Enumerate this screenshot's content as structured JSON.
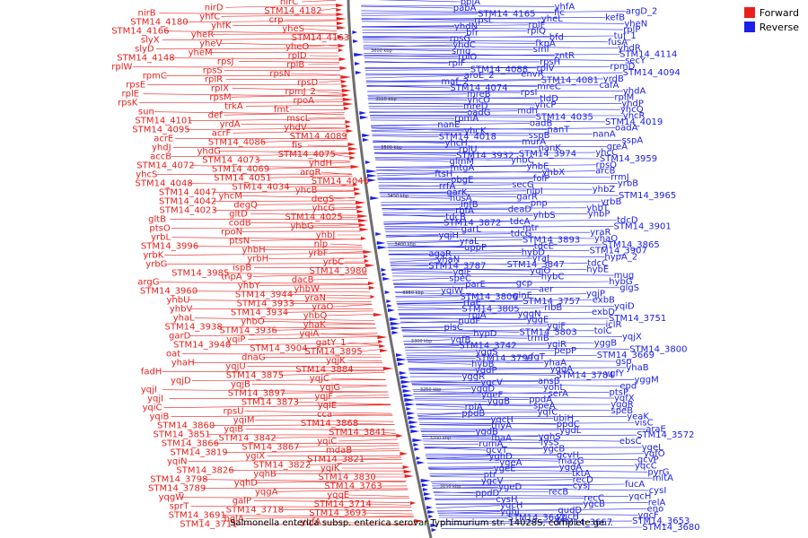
{
  "caption": "Salmonella enterica subsp. enterica serovar Typhimurium str. 14028S, complete ge...",
  "legend": [
    {
      "label": "Forward",
      "color": "#e8201c"
    },
    {
      "label": "Reverse",
      "color": "#1c20e8"
    }
  ],
  "colors": {
    "forward": "#e8201c",
    "reverse": "#1c20e8",
    "backbone": "#6e6e6e"
  },
  "scale_marks": [
    "3600 kbp",
    "3550 kbp",
    "3500 kbp",
    "3450 kbp",
    "3400 kbp",
    "3350 kbp",
    "3300 kbp",
    "3250 kbp",
    "3200 kbp",
    "3150 kbp"
  ],
  "forward_labels": [
    "nirC",
    "nirD",
    "nirB",
    "STM14_4182",
    "yhfC",
    "STM14_4180",
    "crp",
    "yhfK",
    "STM14_4166",
    "yheS",
    "yheR",
    "slyX",
    "STM14_4163",
    "yheV",
    "slyD",
    "yheO",
    "yheM",
    "STM14_4148",
    "rplD",
    "rpsJ",
    "rplW",
    "rplB",
    "rpsS",
    "rpmC",
    "rpsN",
    "rplR",
    "rpsE",
    "rpsD",
    "rplX",
    "rplE",
    "rpmJ_2",
    "rpsM",
    "rpsK",
    "rpoA",
    "trkA",
    "sun",
    "fmt",
    "def",
    "STM14_4101",
    "mscL",
    "yrdA",
    "STM14_4095",
    "yhdV",
    "acrF",
    "acrE",
    "STM14_4089",
    "STM14_4086",
    "yhdJ",
    "fis",
    "yhdG",
    "accB",
    "STM14_4075",
    "STM14_4073",
    "STM14_4072",
    "yhdH",
    "STM14_4069",
    "yhcS",
    "argR",
    "STM14_4051",
    "STM14_4048",
    "STM14_4046",
    "STM14_4034",
    "STM14_4047",
    "yhcB",
    "yhcM",
    "STM14_4042",
    "degS",
    "degQ",
    "STM14_4023",
    "yhcG",
    "gltD",
    "gltB",
    "STM14_4025",
    "codB",
    "ptsO",
    "yhbG",
    "rpoN",
    "yrbL",
    "yhbJ",
    "ptsN",
    "STM14_3996",
    "nlp",
    "yhbH",
    "yrbK",
    "yrbF",
    "yrbH",
    "yrbG",
    "yrbC",
    "ispB",
    "STM14_3985",
    "STM14_3980",
    "tnpA_9",
    "argG",
    "dacB",
    "yhbY",
    "STM14_3960",
    "yhbW",
    "STM14_3944",
    "yhbU",
    "yraN",
    "STM14_3933",
    "yhbV",
    "yraO",
    "STM14_3934",
    "yhaL",
    "yhbQ",
    "yhbO",
    "STM14_3938",
    "yhaK",
    "STM14_3936",
    "garD",
    "yqiA",
    "yqiP",
    "STM14_3940",
    "gatY_1",
    "STM14_3904",
    "oat",
    "STM14_3895",
    "dnaG",
    "yhaH",
    "yqjK",
    "yqjU",
    "fadH",
    "STM14_3884",
    "STM14_3875",
    "yqjD",
    "yqjC",
    "yqjB",
    "yqjI",
    "yqjG",
    "STM14_3897",
    "yqjI",
    "yqjF",
    "STM14_3873",
    "yqiC",
    "yqiE",
    "rpsU",
    "yqiB",
    "cca",
    "yqiM",
    "STM14_3860",
    "STM14_3868",
    "yqiB",
    "STM14_3851",
    "STM14_3841",
    "STM14_3842",
    "STM14_3866",
    "yqiC",
    "STM14_3867",
    "STM14_3819",
    "mdaB",
    "ygiX",
    "yqiN",
    "STM14_3821",
    "STM14_3822",
    "STM14_3826",
    "yqiK",
    "yqhB",
    "STM14_3798",
    "STM14_3830",
    "yqhD",
    "STM14_3789",
    "STM14_3763",
    "yqgA",
    "yqgW",
    "yqqE",
    "galP",
    "sprT",
    "STM14_3714",
    "STM14_3718",
    "STM14_3691",
    "STM14_3693",
    "bglA",
    "STM14_3711",
    "yqfA"
  ],
  "reverse_labels": [
    "ppiA",
    "yhfA",
    "argD_2",
    "pabA",
    "fic",
    "kefB",
    "STM14_4165",
    "yheL",
    "yheN",
    "rpsL",
    "rplF",
    "rplP",
    "yhdN",
    "rplQ",
    "tuf_1",
    "bfr",
    "bfd",
    "fusA",
    "rpsG",
    "fkpA",
    "yhdR",
    "yhdC",
    "smf",
    "STM14_4114",
    "smg",
    "zntR",
    "secY",
    "rplO",
    "rpsH",
    "rpmD",
    "rplF",
    "rplV",
    "STM14_4094",
    "STM14_4088",
    "envR",
    "yrdB",
    "aroE_2",
    "STM14_4081",
    "cafA",
    "maf_2",
    "mreC",
    "yhdA",
    "STM14_4074",
    "rpsI",
    "rplM",
    "mreB",
    "tldD",
    "yhdP",
    "yhcO",
    "yhcP",
    "yhcQ",
    "mreD",
    "mdh",
    "yhcR",
    "oadG",
    "STM14_4035",
    "STM14_4019",
    "rpmA",
    "oadB",
    "oadA",
    "nanE",
    "nanT",
    "nanA",
    "yhcK",
    "sspB",
    "sspA",
    "STM14_4018",
    "murA",
    "greA",
    "yhcH",
    "nanK",
    "yhcC",
    "rplU",
    "STM14_3974",
    "STM14_3959",
    "STM14_3932",
    "yhbC",
    "rpsO",
    "glmM",
    "yhbE",
    "arcB",
    "mtgA",
    "yhbX",
    "rrmJ",
    "ftsH",
    "folP",
    "yrbB",
    "obgE",
    "secG",
    "yhbZ",
    "rrfA",
    "nlpI",
    "STM14_3965",
    "garK",
    "garR",
    "yrbB",
    "nusA",
    "pnp",
    "yhbT",
    "infB",
    "deaD",
    "yhbP",
    "rbfA",
    "yhbS",
    "tdcD",
    "tdcB",
    "tdcA",
    "STM14_3901",
    "STM14_3872",
    "mtr",
    "yraR",
    "garL",
    "tdcG",
    "yhaO",
    "yqjH",
    "STM14_3893",
    "STM14_3865",
    "yraL",
    "tdcE",
    "STM14_3907",
    "uppP",
    "hybD",
    "hypA_2",
    "agaR",
    "yraJ",
    "tdcC",
    "yhaN",
    "STM14_3847",
    "hybE",
    "STM14_3787",
    "yqjO",
    "mug",
    "yqiF",
    "hybC",
    "hybG",
    "speC",
    "gcp",
    "glgS",
    "parE",
    "aer",
    "yqjP",
    "yqiW",
    "glnE",
    "exbB",
    "STM14_3806",
    "STM14_3757",
    "yqiD",
    "rfaE",
    "ribB",
    "exbD",
    "STM14_3805",
    "yggN",
    "STM14_3751",
    "rpiA",
    "yggE",
    "iclR",
    "nudF",
    "ygiF",
    "tolC",
    "plsC",
    "STM14_3803",
    "yqjX",
    "hypD",
    "trmB",
    "yggB",
    "yqfB",
    "ygiR",
    "STM14_3800",
    "STM14_3742",
    "pepP",
    "STM14_3669",
    "yggS",
    "yfgT",
    "gsp",
    "STM14_3799",
    "yhaA",
    "yhaB",
    "hybB",
    "yqqA",
    "ygfY",
    "yqdP",
    "STM14_3784",
    "yggM",
    "yggR",
    "ansB",
    "epd",
    "ygcV",
    "yohL",
    "ptsP",
    "yggD",
    "serA",
    "yqfX",
    "yqeF",
    "ppdA",
    "yggR",
    "yggB",
    "speA",
    "speB",
    "rpiA",
    "yqfC",
    "yeaK",
    "ppdB",
    "ubiH",
    "visC",
    "yqcH",
    "ppdC",
    "araE",
    "thyA",
    "ygdL",
    "STM14_3572",
    "ygdB",
    "yghS",
    "ebsC",
    "fbaA",
    "lysS",
    "ygeL",
    "rumA",
    "ygcB",
    "yqfO",
    "gcvT",
    "gcvH",
    "gcvP",
    "yghD",
    "mazG",
    "yqcC",
    "ygeA",
    "ygdA",
    "pyrG",
    "ygeE",
    "tktA",
    "mltA",
    "ptr",
    "recD",
    "fucA",
    "ygcV",
    "cysJ",
    "cysI",
    "ygeD",
    "recB",
    "yqcH",
    "ppdD",
    "recC",
    "relA",
    "cysH",
    "ygcB",
    "eno",
    "yqcH",
    "gudD",
    "yqcF",
    "yghJ",
    "ygcH",
    "STM14_3653",
    "STM14_3642",
    "STM14_3667",
    "STM14_3680"
  ]
}
